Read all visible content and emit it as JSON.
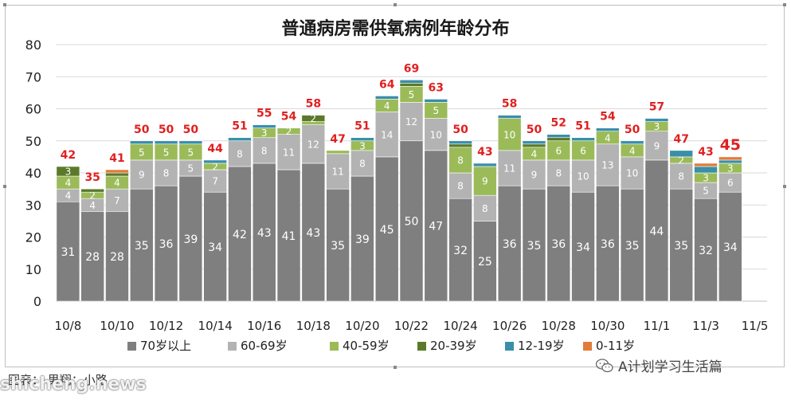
{
  "chart_data": {
    "type": "bar",
    "stacked": true,
    "title": "普通病房需供氧病例年龄分布",
    "ylim": [
      0,
      80
    ],
    "yticks": [
      0,
      10,
      20,
      30,
      40,
      50,
      60,
      70,
      80
    ],
    "grid": true,
    "legend_position": "bottom",
    "x_tick_labels": [
      "10/8",
      "10/10",
      "10/12",
      "10/14",
      "10/16",
      "10/18",
      "10/20",
      "10/22",
      "10/24",
      "10/26",
      "10/28",
      "10/30",
      "11/1",
      "11/3",
      "11/5"
    ],
    "categories": [
      "10/8",
      "10/9",
      "10/10",
      "10/11",
      "10/12",
      "10/13",
      "10/14",
      "10/15",
      "10/16",
      "10/17",
      "10/18",
      "10/19",
      "10/20",
      "10/21",
      "10/22",
      "10/23",
      "10/24",
      "10/25",
      "10/26",
      "10/27",
      "10/28",
      "10/29",
      "10/30",
      "10/31",
      "11/1",
      "11/2",
      "11/3",
      "11/4"
    ],
    "series": [
      {
        "name": "70岁以上",
        "color": "#7f7f7f",
        "values": [
          31,
          28,
          28,
          35,
          36,
          39,
          34,
          42,
          43,
          41,
          43,
          35,
          39,
          45,
          50,
          47,
          32,
          25,
          36,
          35,
          36,
          34,
          36,
          35,
          44,
          35,
          32,
          34
        ]
      },
      {
        "name": "60-69岁",
        "color": "#b3b3b3",
        "values": [
          4,
          4,
          7,
          9,
          8,
          5,
          7,
          8,
          8,
          11,
          12,
          11,
          8,
          14,
          12,
          10,
          8,
          8,
          11,
          9,
          8,
          10,
          13,
          10,
          9,
          8,
          5,
          6
        ]
      },
      {
        "name": "40-59岁",
        "color": "#9bbb59",
        "values": [
          4,
          2,
          4,
          5,
          5,
          5,
          2,
          0,
          3,
          2,
          1,
          1,
          3,
          4,
          5,
          5,
          8,
          9,
          10,
          4,
          6,
          6,
          4,
          4,
          3,
          2,
          3,
          3
        ]
      },
      {
        "name": "20-39岁",
        "color": "#5a7a2a",
        "values": [
          3,
          1,
          1,
          0,
          0,
          0,
          0,
          0,
          0,
          0,
          2,
          0,
          0,
          0,
          1,
          0,
          1,
          0,
          0,
          1,
          1,
          0,
          0,
          0,
          0,
          0,
          0,
          0
        ]
      },
      {
        "name": "12-19岁",
        "color": "#3a8fa8",
        "values": [
          0,
          0,
          0,
          1,
          1,
          1,
          1,
          1,
          1,
          0,
          0,
          0,
          1,
          1,
          1,
          1,
          1,
          1,
          1,
          1,
          1,
          1,
          1,
          1,
          1,
          2,
          2,
          1
        ]
      },
      {
        "name": "0-11岁",
        "color": "#e07b39",
        "values": [
          0,
          0,
          1,
          0,
          0,
          0,
          0,
          0,
          0,
          0,
          0,
          0,
          0,
          0,
          0,
          0,
          0,
          0,
          0,
          0,
          0,
          0,
          0,
          0,
          0,
          0,
          1,
          1
        ]
      }
    ],
    "totals": [
      42,
      35,
      41,
      50,
      50,
      50,
      44,
      51,
      55,
      54,
      58,
      47,
      51,
      64,
      69,
      63,
      50,
      43,
      58,
      50,
      52,
      51,
      54,
      50,
      57,
      47,
      43,
      45
    ],
    "totals_color": "#e02020"
  },
  "footer": {
    "credit": "图表：   男翔：小路",
    "watermark": "shicheng.news",
    "account": "A计划学习生活篇"
  },
  "icons": {
    "wechat": "wechat-icon"
  }
}
